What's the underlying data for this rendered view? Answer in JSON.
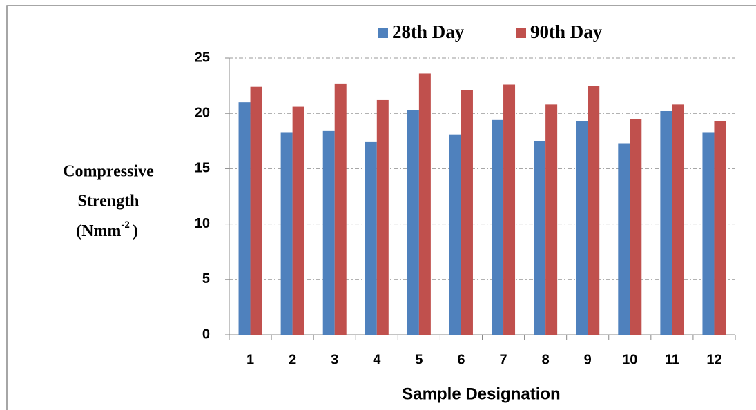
{
  "chart_data": {
    "type": "bar",
    "xlabel": "Sample Designation",
    "ylabel": [
      "Compressive",
      "Strength",
      "(Nmm",
      "-2",
      ")"
    ],
    "categories": [
      "1",
      "2",
      "3",
      "4",
      "5",
      "6",
      "7",
      "8",
      "9",
      "10",
      "11",
      "12"
    ],
    "series": [
      {
        "name": "28th Day",
        "color": "#4f81bd",
        "values": [
          21.0,
          18.3,
          18.4,
          17.4,
          20.3,
          18.1,
          19.4,
          17.5,
          19.3,
          17.3,
          20.2,
          18.3
        ]
      },
      {
        "name": "90th Day",
        "color": "#c0504d",
        "values": [
          22.4,
          20.6,
          22.7,
          21.2,
          23.6,
          22.1,
          22.6,
          20.8,
          22.5,
          19.5,
          20.8,
          19.3
        ]
      }
    ],
    "ylim": [
      0,
      25
    ],
    "yticks": [
      0,
      5,
      10,
      15,
      20,
      25
    ],
    "grid": true,
    "legend": "top"
  }
}
